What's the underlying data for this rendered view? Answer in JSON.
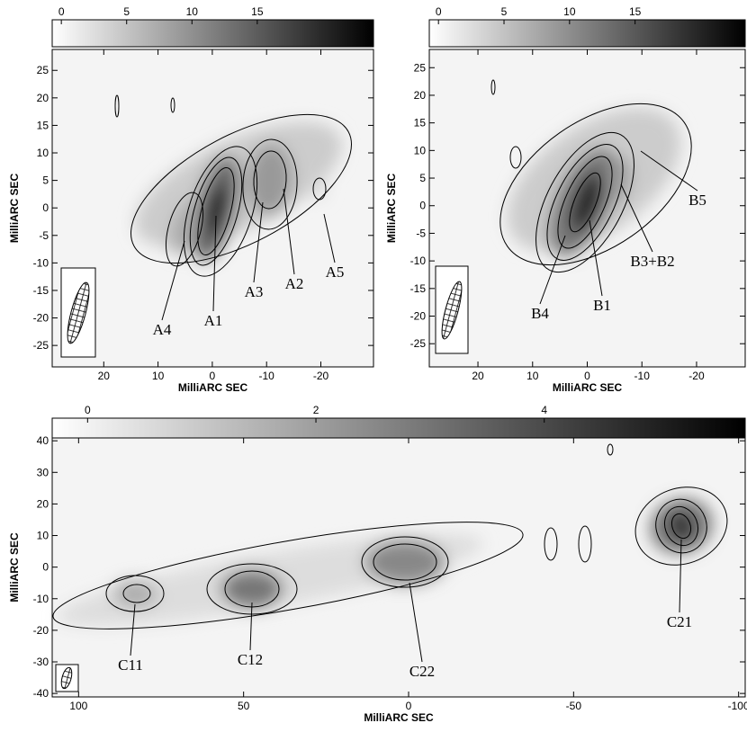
{
  "chart_data": [
    {
      "type": "image",
      "xlabel": "MilliARC SEC",
      "ylabel": "MilliARC SEC",
      "xlim": [
        29.5,
        -29.7
      ],
      "ylim": [
        -28.9,
        28.8
      ],
      "xticks": [
        20,
        10,
        0,
        -10,
        -20
      ],
      "yticks": [
        25,
        20,
        15,
        10,
        5,
        0,
        -5,
        -10,
        -15,
        -20,
        -25
      ],
      "colorbar": {
        "lim": [
          -0.7,
          23.9
        ],
        "ticks": [
          0,
          5,
          10,
          15
        ]
      },
      "annotations": [
        "A4",
        "A1",
        "A3",
        "A2",
        "A5"
      ]
    },
    {
      "type": "image",
      "xlabel": "MilliARC SEC",
      "ylabel": "MilliARC SEC",
      "xlim": [
        28.9,
        -28.9
      ],
      "ylim": [
        -29.2,
        28.3
      ],
      "xticks": [
        20,
        10,
        0,
        -10,
        -20
      ],
      "yticks": [
        25,
        20,
        15,
        10,
        5,
        0,
        -5,
        -10,
        -15,
        -20,
        -25
      ],
      "colorbar": {
        "lim": [
          -0.7,
          23.4
        ],
        "ticks": [
          0,
          5,
          10,
          15
        ]
      },
      "annotations": [
        "B4",
        "B1",
        "B3+B2",
        "B5"
      ]
    },
    {
      "type": "image",
      "xlabel": "MilliARC SEC",
      "ylabel": "MilliARC SEC",
      "xlim": [
        108,
        -102
      ],
      "ylim": [
        -41.1,
        40.9
      ],
      "xticks": [
        100,
        50,
        0,
        -50,
        -100
      ],
      "yticks": [
        40,
        30,
        20,
        10,
        0,
        -10,
        -20,
        -30,
        -40
      ],
      "colorbar": {
        "lim": [
          -0.31,
          5.76
        ],
        "ticks": [
          0,
          2,
          4
        ]
      },
      "annotations": [
        "C11",
        "C12",
        "C22",
        "C21"
      ]
    }
  ]
}
